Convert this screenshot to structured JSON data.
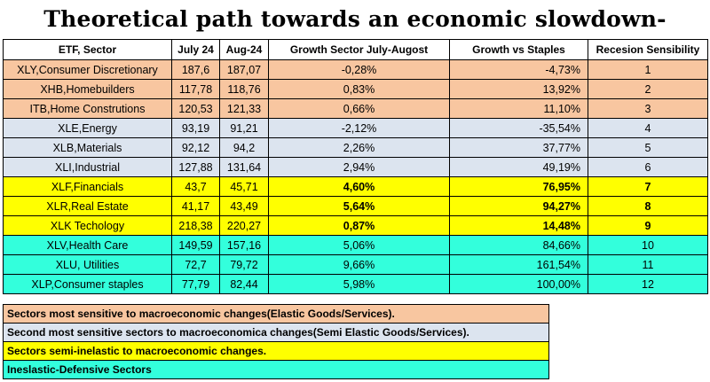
{
  "title": "Theoretical path towards an economic slowdown-recession",
  "colors": {
    "group0": "#f8c6a0",
    "group1": "#dce4ef",
    "group2": "#ffff00",
    "group3": "#33ffdc"
  },
  "chart_data": {
    "type": "table",
    "columns": [
      "ETF, Sector",
      "July 24",
      "Aug-24",
      "Growth Sector July-Augost",
      "Growth vs Staples",
      "Recesion Sensibility"
    ],
    "rows": [
      {
        "sector": "XLY,Consumer Discretionary",
        "jul": "187,6",
        "aug": "187,07",
        "growth": "-0,28%",
        "vs_staples": "-4,73%",
        "sens": "1",
        "group": 0
      },
      {
        "sector": "XHB,Homebuilders",
        "jul": "117,78",
        "aug": "118,76",
        "growth": "0,83%",
        "vs_staples": "13,92%",
        "sens": "2",
        "group": 0
      },
      {
        "sector": "ITB,Home Construtions",
        "jul": "120,53",
        "aug": "121,33",
        "growth": "0,66%",
        "vs_staples": "11,10%",
        "sens": "3",
        "group": 0
      },
      {
        "sector": "XLE,Energy",
        "jul": "93,19",
        "aug": "91,21",
        "growth": "-2,12%",
        "vs_staples": "-35,54%",
        "sens": "4",
        "group": 1
      },
      {
        "sector": "XLB,Materials",
        "jul": "92,12",
        "aug": "94,2",
        "growth": "2,26%",
        "vs_staples": "37,77%",
        "sens": "5",
        "group": 1
      },
      {
        "sector": "XLI,Industrial",
        "jul": "127,88",
        "aug": "131,64",
        "growth": "2,94%",
        "vs_staples": "49,19%",
        "sens": "6",
        "group": 1
      },
      {
        "sector": "XLF,Financials",
        "jul": "43,7",
        "aug": "45,71",
        "growth": "4,60%",
        "vs_staples": "76,95%",
        "sens": "7",
        "group": 2
      },
      {
        "sector": "XLR,Real Estate",
        "jul": "41,17",
        "aug": "43,49",
        "growth": "5,64%",
        "vs_staples": "94,27%",
        "sens": "8",
        "group": 2
      },
      {
        "sector": "XLK Techology",
        "jul": "218,38",
        "aug": "220,27",
        "growth": "0,87%",
        "vs_staples": "14,48%",
        "sens": "9",
        "group": 2
      },
      {
        "sector": "XLV,Health Care",
        "jul": "149,59",
        "aug": "157,16",
        "growth": "5,06%",
        "vs_staples": "84,66%",
        "sens": "10",
        "group": 3
      },
      {
        "sector": "XLU, Utilities",
        "jul": "72,7",
        "aug": "79,72",
        "growth": "9,66%",
        "vs_staples": "161,54%",
        "sens": "11",
        "group": 3
      },
      {
        "sector": "XLP,Consumer staples",
        "jul": "77,79",
        "aug": "82,44",
        "growth": "5,98%",
        "vs_staples": "100,00%",
        "sens": "12",
        "group": 3
      }
    ]
  },
  "legend": [
    "Sectors most sensitive to macroeconomic changes(Elastic Goods/Services).",
    "Second most sensitive sectors to macroeconomica changes(Semi Elastic Goods/Services).",
    "Sectors semi-inelastic to macroeconomic changes.",
    "Ineslastic-Defensive Sectors"
  ]
}
